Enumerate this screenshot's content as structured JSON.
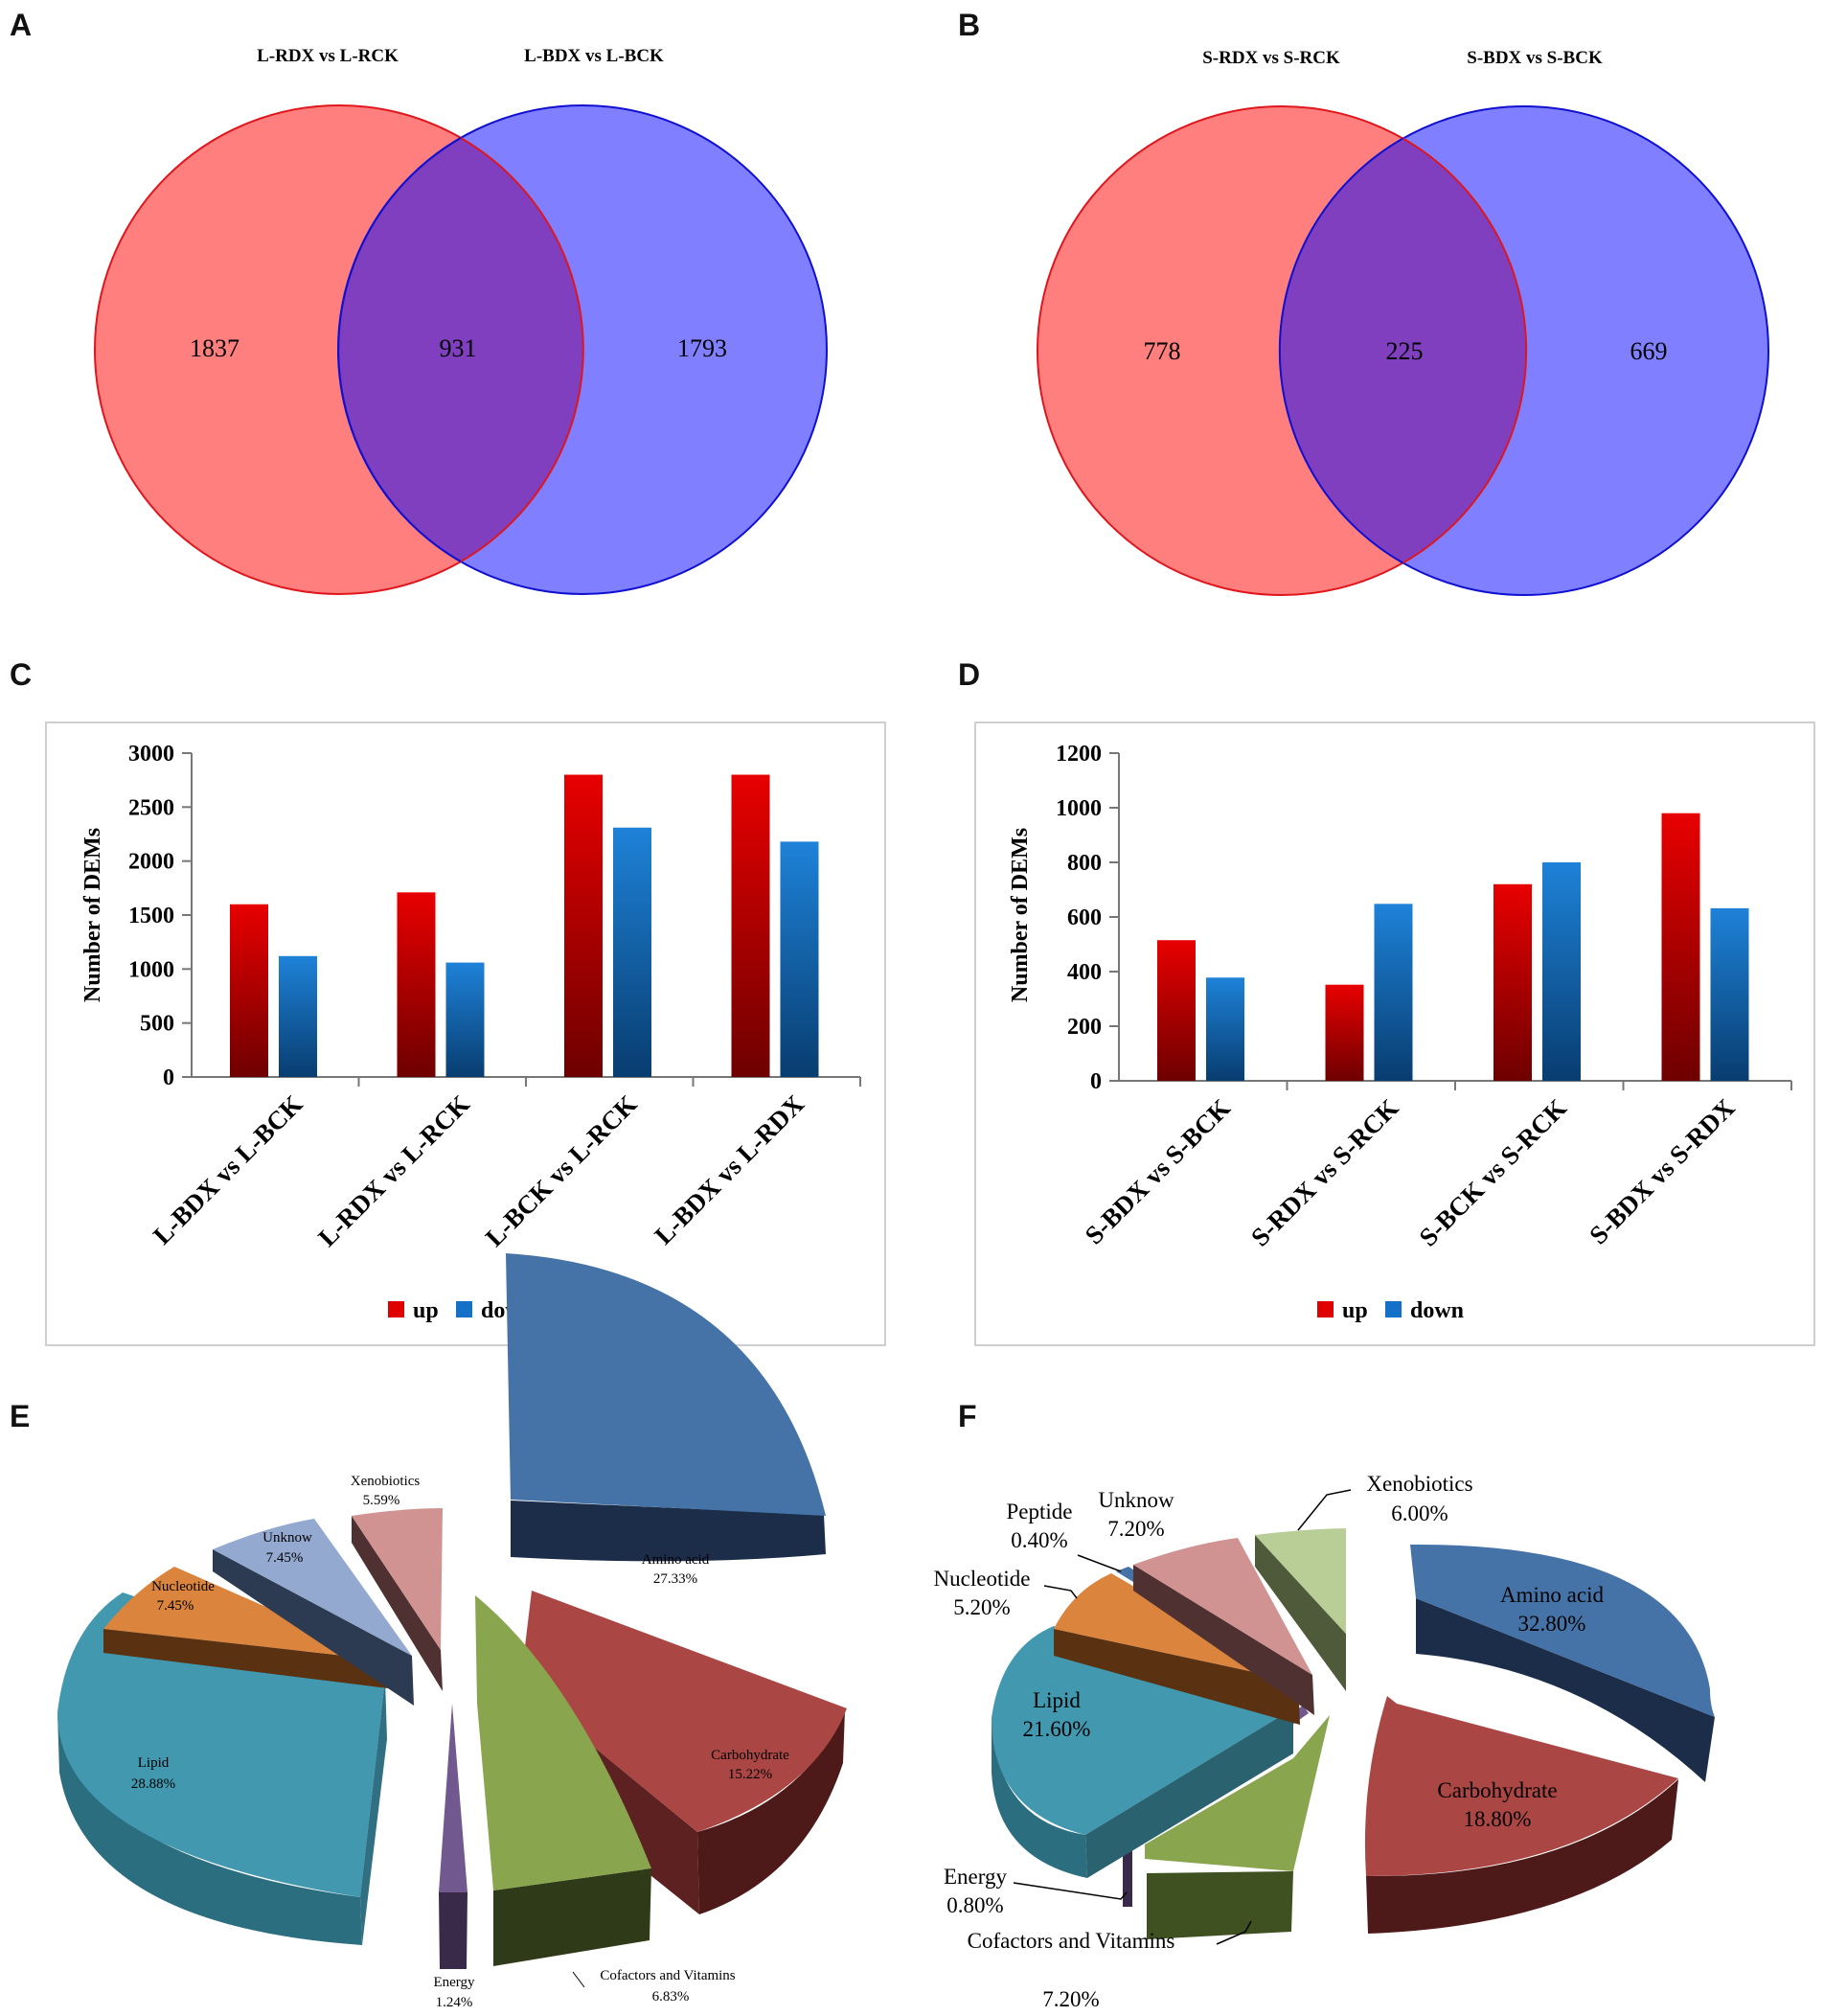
{
  "panel_letters": [
    "A",
    "B",
    "C",
    "D",
    "E",
    "F"
  ],
  "colors": {
    "venn_red_fill": "#ff7f7f",
    "venn_red_stroke": "#e0161d",
    "venn_blue_fill": "#7f7fff",
    "venn_blue_stroke": "#1010d0",
    "venn_overlap": "#7f3fbf",
    "bar_up_top": "#e80000",
    "bar_up_bottom": "#6e0000",
    "bar_down_top": "#1e82d8",
    "bar_down_bottom": "#083d70",
    "amino_acid": "#4573a7",
    "carbohydrate": "#aa4643",
    "cofactors": "#89a54e",
    "energy": "#71588f",
    "lipid": "#4198af",
    "nucleotide": "#db843d",
    "unknow_e": "#93a9cf",
    "xenobiotics_e": "#d19392",
    "peptide": "#4573a7",
    "unknow_f": "#d19392",
    "xenobiotics_f": "#b9cd96"
  },
  "chart_data": [
    {
      "panel": "A",
      "type": "venn",
      "sets": [
        "L-RDX vs L-RCK",
        "L-BDX vs L-BCK"
      ],
      "values": {
        "left_only": 1837,
        "both": 931,
        "right_only": 1793
      }
    },
    {
      "panel": "B",
      "type": "venn",
      "sets": [
        "S-RDX vs S-RCK",
        "S-BDX vs S-BCK"
      ],
      "values": {
        "left_only": 778,
        "both": 225,
        "right_only": 669
      }
    },
    {
      "panel": "C",
      "type": "bar",
      "categories": [
        "L-BDX vs L-BCK",
        "L-RDX vs L-RCK",
        "L-BCK vs L-RCK",
        "L-BDX vs L-RDX"
      ],
      "series": [
        {
          "name": "up",
          "values": [
            1600,
            1710,
            2800,
            2800
          ]
        },
        {
          "name": "down",
          "values": [
            1120,
            1060,
            2310,
            2180
          ]
        }
      ],
      "ylabel": "Number of DEMs",
      "ylim": [
        0,
        3000
      ],
      "yticks": [
        0,
        500,
        1000,
        1500,
        2000,
        2500,
        3000
      ],
      "legend": "bottom"
    },
    {
      "panel": "D",
      "type": "bar",
      "categories": [
        "S-BDX vs S-BCK",
        "S-RDX vs S-RCK",
        "S-BCK vs S-RCK",
        "S-BDX vs S-RDX"
      ],
      "series": [
        {
          "name": "up",
          "values": [
            515,
            352,
            720,
            980
          ]
        },
        {
          "name": "down",
          "values": [
            378,
            648,
            800,
            632
          ]
        }
      ],
      "ylabel": "Number of DEMs",
      "ylim": [
        0,
        1200
      ],
      "yticks": [
        0,
        200,
        400,
        600,
        800,
        1000,
        1200
      ],
      "legend": "bottom"
    },
    {
      "panel": "E",
      "type": "pie",
      "slices": [
        {
          "label": "Amino acid",
          "value": "27.33%"
        },
        {
          "label": "Carbohydrate",
          "value": "15.22%"
        },
        {
          "label": "Cofactors and Vitamins",
          "value": "6.83%"
        },
        {
          "label": "Energy",
          "value": "1.24%"
        },
        {
          "label": "Lipid",
          "value": "28.88%"
        },
        {
          "label": "Nucleotide",
          "value": "7.45%"
        },
        {
          "label": "Unknow",
          "value": "7.45%"
        },
        {
          "label": "Xenobiotics",
          "value": "5.59%"
        }
      ]
    },
    {
      "panel": "F",
      "type": "pie",
      "slices": [
        {
          "label": "Amino acid",
          "value": "32.80%"
        },
        {
          "label": "Carbohydrate",
          "value": "18.80%"
        },
        {
          "label": "Cofactors and Vitamins",
          "value": "7.20%"
        },
        {
          "label": "Energy",
          "value": "0.80%"
        },
        {
          "label": "Lipid",
          "value": "21.60%"
        },
        {
          "label": "Nucleotide",
          "value": "5.20%"
        },
        {
          "label": "Peptide",
          "value": "0.40%"
        },
        {
          "label": "Unknow",
          "value": "7.20%"
        },
        {
          "label": "Xenobiotics",
          "value": "6.00%"
        }
      ]
    }
  ]
}
